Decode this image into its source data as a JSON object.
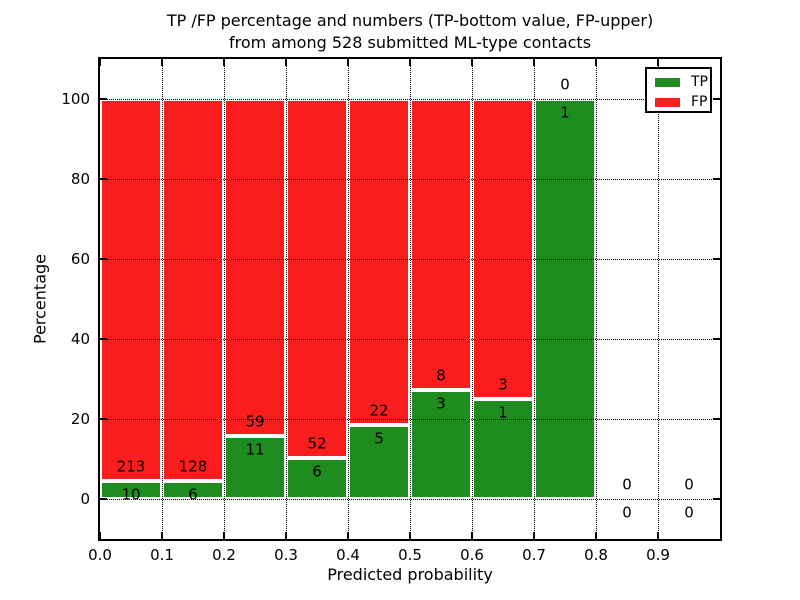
{
  "title": {
    "line1": "TP /FP percentage and numbers (TP-bottom value, FP-upper)",
    "line2": "from among 528 submitted ML-type contacts"
  },
  "legend": {
    "items": [
      {
        "label": "TP",
        "color": "#1e8c1e"
      },
      {
        "label": "FP",
        "color": "#fa1d1d"
      }
    ]
  },
  "chart_data": {
    "type": "bar",
    "stacked": true,
    "values_unit": "percent_of_bin_total",
    "title": "TP /FP percentage and numbers (TP-bottom value, FP-upper) from among 528 submitted ML-type contacts",
    "xlabel": "Predicted probability",
    "ylabel": "Percentage",
    "xlim": [
      0.0,
      1.0
    ],
    "ylim": [
      -10,
      110
    ],
    "grid": true,
    "grid_style": "dotted",
    "legend_position": "upper right",
    "x_ticks": [
      "0.0",
      "0.1",
      "0.2",
      "0.3",
      "0.4",
      "0.5",
      "0.6",
      "0.7",
      "0.8",
      "0.9"
    ],
    "y_ticks": [
      "0",
      "20",
      "40",
      "60",
      "80",
      "100"
    ],
    "bin_width": 0.1,
    "bin_starts": [
      0.0,
      0.1,
      0.2,
      0.3,
      0.4,
      0.5,
      0.6,
      0.7,
      0.8,
      0.9
    ],
    "series": [
      {
        "name": "TP",
        "color": "#1e8c1e",
        "counts": [
          10,
          6,
          11,
          6,
          5,
          3,
          1,
          1,
          0,
          0
        ]
      },
      {
        "name": "FP",
        "color": "#fa1d1d",
        "counts": [
          213,
          128,
          59,
          52,
          22,
          8,
          3,
          0,
          0,
          0
        ]
      }
    ],
    "tp_percent_per_bin": [
      4.5,
      4.5,
      15.7,
      10.3,
      18.5,
      27.3,
      25.0,
      100.0,
      0.0,
      0.0
    ],
    "total_contacts": 528
  }
}
